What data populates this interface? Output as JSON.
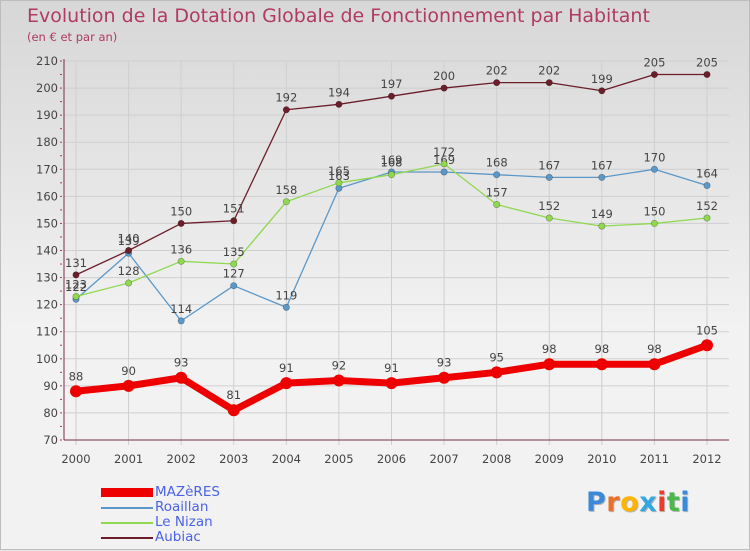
{
  "title": "Evolution de la Dotation Globale de Fonctionnement par Habitant",
  "subtitle": "(en € et par an)",
  "logo": "Proxiti",
  "colors": {
    "title": "#b03a63",
    "legend_text": "#4b63e6",
    "axis": "#7a2a47",
    "label": "#444444",
    "grid": "#cfcfcf"
  },
  "chart_data": {
    "type": "line",
    "x": [
      "2000",
      "2001",
      "2002",
      "2003",
      "2004",
      "2005",
      "2006",
      "2007",
      "2008",
      "2009",
      "2010",
      "2011",
      "2012"
    ],
    "ylim": [
      70,
      210
    ],
    "yticks": [
      70,
      80,
      90,
      100,
      110,
      120,
      130,
      140,
      150,
      160,
      170,
      180,
      190,
      200,
      210
    ],
    "grid": true,
    "legend_position": "bottom-left",
    "series": [
      {
        "name": "MAZèRES",
        "color": "#ee0000",
        "weight": "heavy",
        "values": [
          88,
          90,
          93,
          81,
          91,
          92,
          91,
          93,
          95,
          98,
          98,
          98,
          105
        ]
      },
      {
        "name": "Roaillan",
        "color": "#5b98c8",
        "weight": "thin",
        "values": [
          122,
          139,
          114,
          127,
          119,
          163,
          169,
          169,
          168,
          167,
          167,
          170,
          164
        ]
      },
      {
        "name": "Le Nizan",
        "color": "#90d850",
        "weight": "thin",
        "values": [
          123,
          128,
          136,
          135,
          158,
          165,
          168,
          172,
          157,
          152,
          149,
          150,
          152
        ]
      },
      {
        "name": "Aubiac",
        "color": "#6b1e2a",
        "weight": "thin",
        "values": [
          131,
          140,
          150,
          151,
          192,
          194,
          197,
          200,
          202,
          202,
          199,
          205,
          205
        ]
      }
    ]
  }
}
